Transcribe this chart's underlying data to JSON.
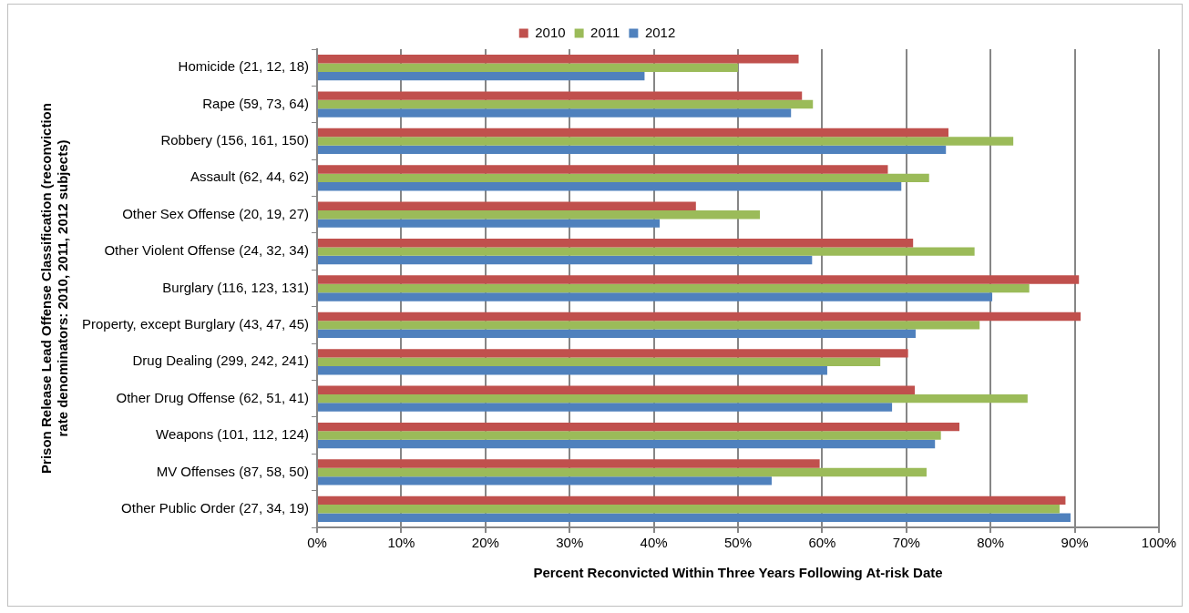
{
  "chart_data": {
    "type": "bar",
    "orientation": "horizontal",
    "xlabel": "Percent Reconvicted Within Three Years Following At-risk Date",
    "ylabel": "Prison Release Lead Offense Classification (reconviction rate denominators: 2010, 2011, 2012 subjects)",
    "categories": [
      "Homicide (21, 12, 18)",
      "Rape (59, 73, 64)",
      "Robbery (156, 161, 150)",
      "Assault (62, 44, 62)",
      "Other Sex Offense (20, 19, 27)",
      "Other Violent Offense (24, 32, 34)",
      "Burglary (116, 123, 131)",
      "Property, except Burglary (43, 47, 45)",
      "Drug Dealing (299, 242, 241)",
      "Other Drug Offense (62, 51, 41)",
      "Weapons (101, 112, 124)",
      "MV Offenses (87, 58, 50)",
      "Other Public Order (27, 34, 19)"
    ],
    "series": [
      {
        "name": "2010",
        "color": "#c0504d",
        "values": [
          57.2,
          57.6,
          75.0,
          67.8,
          45.0,
          70.8,
          90.5,
          90.7,
          70.2,
          71.0,
          76.3,
          59.7,
          88.9
        ]
      },
      {
        "name": "2011",
        "color": "#9bbb59",
        "values": [
          50.0,
          58.9,
          82.7,
          72.7,
          52.6,
          78.1,
          84.6,
          78.7,
          66.9,
          84.4,
          74.1,
          72.4,
          88.2
        ]
      },
      {
        "name": "2012",
        "color": "#4f81bd",
        "values": [
          38.9,
          56.3,
          74.7,
          69.4,
          40.7,
          58.8,
          80.2,
          71.1,
          60.6,
          68.3,
          73.4,
          54.0,
          89.5
        ]
      }
    ],
    "xlim": [
      0,
      100
    ],
    "xticks": [
      {
        "value": 0,
        "label": "0%"
      },
      {
        "value": 10,
        "label": "10%"
      },
      {
        "value": 20,
        "label": "20%"
      },
      {
        "value": 30,
        "label": "30%"
      },
      {
        "value": 40,
        "label": "40%"
      },
      {
        "value": 50,
        "label": "50%"
      },
      {
        "value": 60,
        "label": "60%"
      },
      {
        "value": 70,
        "label": "70%"
      },
      {
        "value": 80,
        "label": "80%"
      },
      {
        "value": 90,
        "label": "90%"
      },
      {
        "value": 100,
        "label": "100%"
      }
    ],
    "grid": "x",
    "legend": "top"
  }
}
